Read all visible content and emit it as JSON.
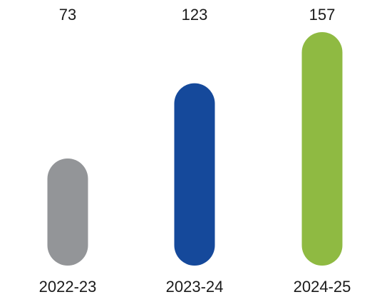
{
  "chart_data": {
    "type": "bar",
    "categories": [
      "2022-23",
      "2023-24",
      "2024-25"
    ],
    "values": [
      73,
      123,
      157
    ],
    "colors": [
      "#939598",
      "#15499b",
      "#8fba42"
    ],
    "title": "",
    "xlabel": "",
    "ylabel": "",
    "ylim": [
      0,
      157
    ],
    "grid": false,
    "legend": "none",
    "data_labels": [
      "73",
      "123",
      "157"
    ]
  }
}
